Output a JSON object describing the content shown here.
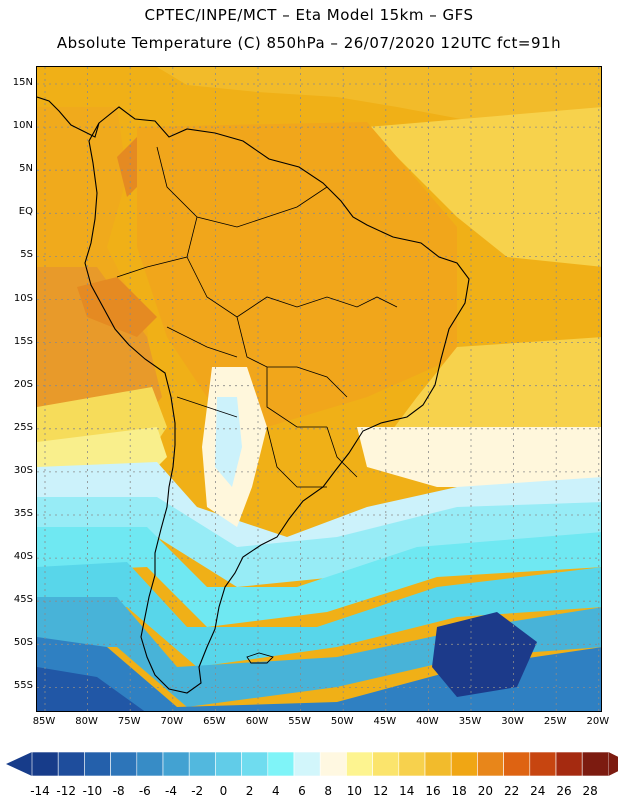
{
  "header": {
    "line1": "CPTEC/INPE/MCT –  Eta Model 15km – GFS",
    "line2": "Absolute Temperature (C) 850hPa – 26/07/2020 12UTC fct=91h"
  },
  "map": {
    "lat_labels": [
      "15N",
      "10N",
      "5N",
      "EQ",
      "5S",
      "10S",
      "15S",
      "20S",
      "25S",
      "30S",
      "35S",
      "40S",
      "45S",
      "50S",
      "55S"
    ],
    "lon_labels": [
      "85W",
      "80W",
      "75W",
      "70W",
      "65W",
      "60W",
      "55W",
      "50W",
      "45W",
      "40W",
      "35W",
      "30W",
      "25W",
      "20W"
    ],
    "fields": {
      "ocean_north": "#f0b017",
      "caribbean": "#f2bb2a",
      "amazon": "#f1a61b",
      "pacific_tropical": "#f0aa1c",
      "andes_warm": "#e58a22",
      "sw_pacific_orange": "#e89a2a",
      "pacific_yellow": "#f6dc5a",
      "pacific_light_yellow": "#f9ef8c",
      "atlantic_yellow": "#f7d24c",
      "cream": "#fff7dc",
      "pale_cyan": "#ccf2fb",
      "light_cyan": "#97ecf6",
      "cyan": "#6fe8f2",
      "teal_cyan": "#58d6ea",
      "blue_light": "#48b3d8",
      "blue_mid": "#2f80c2",
      "blue_dark": "#2157a6",
      "deep_navy": "#1c3a8a"
    }
  },
  "colorbar": {
    "ticks": [
      "-14",
      "-12",
      "-10",
      "-8",
      "-6",
      "-4",
      "-2",
      "0",
      "2",
      "4",
      "6",
      "8",
      "10",
      "12",
      "14",
      "16",
      "18",
      "20",
      "22",
      "24",
      "26",
      "28"
    ],
    "colors": [
      "#173c8a",
      "#1e4d9c",
      "#2460ab",
      "#2d75b9",
      "#378cc6",
      "#43a2d2",
      "#52b8de",
      "#61cce8",
      "#6fdcef",
      "#7ff4f8",
      "#d2f6fb",
      "#fff8e1",
      "#fdf490",
      "#fbe46c",
      "#f7d14d",
      "#f2bb2c",
      "#f0a614",
      "#e8861a",
      "#de6312",
      "#c74510",
      "#a52a10",
      "#7c1b10"
    ]
  }
}
